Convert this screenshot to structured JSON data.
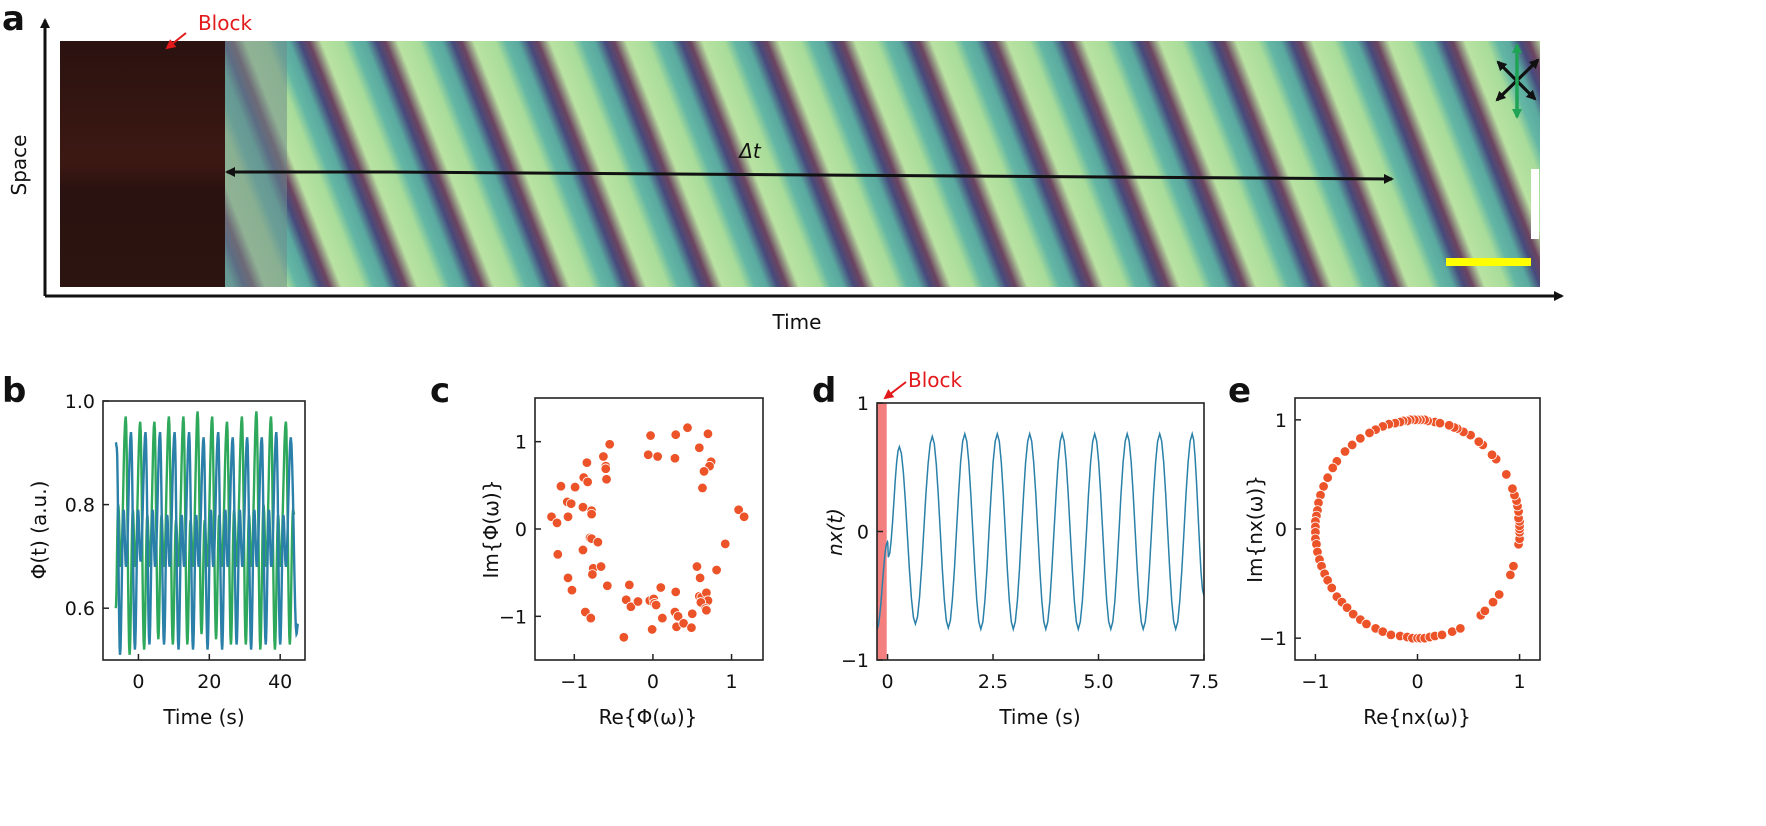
{
  "colors": {
    "annotation_red": "#e31a1c",
    "block_shade": "#f47f7f",
    "series_green": "#2ea85a",
    "series_blue": "#2a80a8",
    "scatter_orange": "#ec5329",
    "scale_bar_white": "#ffffff",
    "scale_bar_yellow": "#ffff00",
    "polarizer_green": "#1fa354",
    "polarizer_black": "#111111"
  },
  "panel_a": {
    "letter": "a",
    "block_label": "Block",
    "y_axis_label": "Space",
    "x_axis_label": "Time",
    "delta_label": "Δt",
    "icons": [
      "crossed-polarizer-arrows-icon"
    ]
  },
  "chart_data": [
    {
      "panel": "b",
      "type": "line",
      "xlabel": "Time (s)",
      "ylabel": "Φ(t) (a.u.)",
      "xlim": [
        -10,
        47
      ],
      "ylim": [
        0.5,
        1.0
      ],
      "xticks": [
        0,
        20,
        40
      ],
      "yticks": [
        0.6,
        0.8,
        1.0
      ],
      "ytick_labels": [
        "0.6",
        "0.8",
        "1.0"
      ],
      "grid": false,
      "series": [
        {
          "color": "#2ea85a",
          "points": [
            [
              -6.4,
              0.6
            ],
            [
              -5.7,
              0.8
            ],
            [
              -5.0,
              0.68
            ],
            [
              -3.6,
              0.97
            ],
            [
              -2.5,
              0.51
            ],
            [
              -1.6,
              0.79
            ],
            [
              -0.9,
              0.68
            ],
            [
              0.5,
              0.96
            ],
            [
              1.6,
              0.52
            ],
            [
              2.5,
              0.78
            ],
            [
              3.2,
              0.68
            ],
            [
              4.5,
              0.96
            ],
            [
              5.6,
              0.54
            ],
            [
              6.5,
              0.78
            ],
            [
              7.2,
              0.68
            ],
            [
              8.6,
              0.97
            ],
            [
              9.7,
              0.53
            ],
            [
              10.6,
              0.77
            ],
            [
              11.3,
              0.68
            ],
            [
              12.7,
              0.97
            ],
            [
              13.8,
              0.53
            ],
            [
              14.7,
              0.77
            ],
            [
              15.4,
              0.68
            ],
            [
              16.7,
              0.98
            ],
            [
              17.8,
              0.55
            ],
            [
              18.7,
              0.77
            ],
            [
              19.4,
              0.68
            ],
            [
              20.8,
              0.97
            ],
            [
              21.9,
              0.54
            ],
            [
              22.8,
              0.78
            ],
            [
              23.5,
              0.68
            ],
            [
              25.0,
              0.96
            ],
            [
              26.1,
              0.53
            ],
            [
              27.0,
              0.79
            ],
            [
              27.7,
              0.68
            ],
            [
              29.2,
              0.97
            ],
            [
              30.3,
              0.53
            ],
            [
              31.2,
              0.78
            ],
            [
              31.9,
              0.68
            ],
            [
              33.3,
              0.98
            ],
            [
              34.4,
              0.52
            ],
            [
              35.3,
              0.8
            ],
            [
              36.0,
              0.68
            ],
            [
              37.4,
              0.97
            ],
            [
              38.5,
              0.52
            ],
            [
              39.4,
              0.78
            ],
            [
              40.1,
              0.68
            ],
            [
              41.6,
              0.96
            ],
            [
              42.7,
              0.53
            ],
            [
              43.6,
              0.79
            ],
            [
              44.0,
              0.78
            ]
          ]
        },
        {
          "color": "#2a80a8",
          "points": [
            [
              -6.4,
              0.92
            ],
            [
              -6.1,
              0.91
            ],
            [
              -5.2,
              0.51
            ],
            [
              -4.2,
              0.79
            ],
            [
              -3.5,
              0.68
            ],
            [
              -2.1,
              0.94
            ],
            [
              -1.0,
              0.52
            ],
            [
              -0.1,
              0.79
            ],
            [
              0.6,
              0.69
            ],
            [
              2.0,
              0.94
            ],
            [
              3.1,
              0.53
            ],
            [
              4.0,
              0.79
            ],
            [
              4.7,
              0.68
            ],
            [
              6.1,
              0.94
            ],
            [
              7.2,
              0.53
            ],
            [
              8.1,
              0.78
            ],
            [
              8.8,
              0.68
            ],
            [
              10.2,
              0.94
            ],
            [
              11.3,
              0.52
            ],
            [
              12.2,
              0.78
            ],
            [
              12.9,
              0.68
            ],
            [
              14.3,
              0.94
            ],
            [
              15.4,
              0.52
            ],
            [
              16.3,
              0.78
            ],
            [
              17.0,
              0.68
            ],
            [
              18.4,
              0.93
            ],
            [
              19.5,
              0.52
            ],
            [
              20.4,
              0.79
            ],
            [
              21.1,
              0.68
            ],
            [
              22.5,
              0.94
            ],
            [
              23.6,
              0.52
            ],
            [
              24.5,
              0.79
            ],
            [
              25.2,
              0.68
            ],
            [
              26.6,
              0.93
            ],
            [
              27.7,
              0.53
            ],
            [
              28.6,
              0.79
            ],
            [
              29.3,
              0.68
            ],
            [
              30.7,
              0.93
            ],
            [
              31.8,
              0.52
            ],
            [
              32.7,
              0.79
            ],
            [
              33.4,
              0.68
            ],
            [
              34.8,
              0.93
            ],
            [
              35.9,
              0.53
            ],
            [
              36.8,
              0.79
            ],
            [
              37.5,
              0.68
            ],
            [
              38.9,
              0.94
            ],
            [
              40.0,
              0.53
            ],
            [
              40.9,
              0.78
            ],
            [
              41.6,
              0.68
            ],
            [
              43.0,
              0.93
            ],
            [
              44.6,
              0.55
            ],
            [
              45.0,
              0.57
            ]
          ]
        }
      ]
    },
    {
      "panel": "c",
      "type": "scatter",
      "xlabel": "Re{Φ(ω)}",
      "ylabel": "Im{Φ(ω)}",
      "xlim": [
        -1.5,
        1.4
      ],
      "ylim": [
        -1.5,
        1.5
      ],
      "xticks": [
        -1,
        0,
        1
      ],
      "yticks": [
        -1,
        0,
        1
      ],
      "grid": false,
      "color": "#ec5329",
      "points": [
        [
          -1.29,
          0.14
        ],
        [
          -1.22,
          0.07
        ],
        [
          -1.17,
          0.49
        ],
        [
          -0.99,
          0.48
        ],
        [
          -1.09,
          0.31
        ],
        [
          -1.04,
          0.29
        ],
        [
          -1.08,
          0.14
        ],
        [
          -1.21,
          -0.29
        ],
        [
          -1.08,
          -0.56
        ],
        [
          -1.03,
          -0.7
        ],
        [
          -0.86,
          -0.95
        ],
        [
          -0.79,
          -1.02
        ],
        [
          -0.84,
          0.76
        ],
        [
          -0.88,
          0.59
        ],
        [
          -0.83,
          0.54
        ],
        [
          -0.89,
          0.25
        ],
        [
          -0.78,
          0.21
        ],
        [
          -0.78,
          0.17
        ],
        [
          -0.8,
          -0.1
        ],
        [
          -0.78,
          -0.11
        ],
        [
          -0.7,
          -0.15
        ],
        [
          -0.89,
          -0.24
        ],
        [
          -0.76,
          -0.45
        ],
        [
          -0.66,
          -0.43
        ],
        [
          -0.77,
          -0.52
        ],
        [
          -0.58,
          -0.65
        ],
        [
          -0.63,
          0.83
        ],
        [
          -0.55,
          0.97
        ],
        [
          -0.6,
          0.72
        ],
        [
          -0.6,
          0.69
        ],
        [
          -0.59,
          0.57
        ],
        [
          -0.3,
          -0.64
        ],
        [
          -0.34,
          -0.81
        ],
        [
          -0.28,
          -0.89
        ],
        [
          -0.19,
          -0.83
        ],
        [
          -0.37,
          -1.24
        ],
        [
          -0.03,
          1.07
        ],
        [
          -0.06,
          0.85
        ],
        [
          0.06,
          0.83
        ],
        [
          0.29,
          1.08
        ],
        [
          0.28,
          0.81
        ],
        [
          0.44,
          1.16
        ],
        [
          0.7,
          1.09
        ],
        [
          0.59,
          0.93
        ],
        [
          0.74,
          0.77
        ],
        [
          0.72,
          0.72
        ],
        [
          0.65,
          0.66
        ],
        [
          0.63,
          0.47
        ],
        [
          1.09,
          0.22
        ],
        [
          1.16,
          0.14
        ],
        [
          0.92,
          -0.17
        ],
        [
          0.81,
          -0.47
        ],
        [
          0.56,
          -0.43
        ],
        [
          0.6,
          -0.56
        ],
        [
          0.59,
          -0.77
        ],
        [
          0.62,
          -0.78
        ],
        [
          0.68,
          -0.73
        ],
        [
          0.7,
          -0.82
        ],
        [
          0.61,
          -0.84
        ],
        [
          0.67,
          -0.91
        ],
        [
          0.68,
          -0.93
        ],
        [
          -0.04,
          -0.82
        ],
        [
          0.01,
          -0.8
        ],
        [
          0.02,
          -0.85
        ],
        [
          0.04,
          -0.87
        ],
        [
          0.1,
          -0.67
        ],
        [
          -0.01,
          -1.15
        ],
        [
          0.12,
          -1.02
        ],
        [
          0.29,
          -0.72
        ],
        [
          0.28,
          -0.95
        ],
        [
          0.32,
          -1.0
        ],
        [
          0.3,
          -1.12
        ],
        [
          0.39,
          -1.08
        ],
        [
          0.5,
          -0.97
        ],
        [
          0.49,
          -1.13
        ]
      ]
    },
    {
      "panel": "d",
      "type": "line",
      "xlabel": "Time (s)",
      "ylabel": "nx(t)",
      "xlim": [
        -0.25,
        7.5
      ],
      "ylim": [
        -1,
        1
      ],
      "xticks": [
        0,
        2.5,
        5.0,
        7.5
      ],
      "xtick_labels": [
        "0",
        "2.5",
        "5.0",
        "7.5"
      ],
      "yticks": [
        -1,
        0,
        1
      ],
      "grid": false,
      "block_label": "Block",
      "block_interval": [
        -0.25,
        -0.02
      ],
      "series": [
        {
          "color": "#2a80a8",
          "points": [
            [
              -0.25,
              -0.76
            ],
            [
              0.0,
              -0.08
            ],
            [
              0.02,
              -0.2
            ],
            [
              0.28,
              0.66
            ],
            [
              0.66,
              -0.72
            ],
            [
              1.06,
              0.74
            ],
            [
              1.44,
              -0.75
            ],
            [
              1.83,
              0.76
            ],
            [
              2.21,
              -0.76
            ],
            [
              2.6,
              0.76
            ],
            [
              2.98,
              -0.76
            ],
            [
              3.37,
              0.76
            ],
            [
              3.75,
              -0.76
            ],
            [
              4.14,
              0.76
            ],
            [
              4.52,
              -0.76
            ],
            [
              4.91,
              0.76
            ],
            [
              5.29,
              -0.76
            ],
            [
              5.68,
              0.76
            ],
            [
              6.06,
              -0.76
            ],
            [
              6.45,
              0.76
            ],
            [
              6.83,
              -0.76
            ],
            [
              7.22,
              0.76
            ],
            [
              7.5,
              -0.5
            ]
          ]
        }
      ]
    },
    {
      "panel": "e",
      "type": "scatter",
      "xlabel": "Re{nx(ω)}",
      "ylabel": "Im{nx(ω)}",
      "xlim": [
        -1.2,
        1.2
      ],
      "ylim": [
        -1.2,
        1.2
      ],
      "xticks": [
        -1,
        0,
        1
      ],
      "yticks": [
        -1,
        0,
        1
      ],
      "grid": false,
      "color": "#ec5329",
      "points": [
        [
          0.17,
          0.98
        ],
        [
          0.1,
          0.99
        ],
        [
          0.07,
          1.0
        ],
        [
          0.03,
          1.0
        ],
        [
          0.0,
          1.0
        ],
        [
          -0.03,
          1.0
        ],
        [
          -0.07,
          1.0
        ],
        [
          -0.1,
          0.99
        ],
        [
          -0.14,
          0.99
        ],
        [
          -0.17,
          0.98
        ],
        [
          -0.22,
          0.97
        ],
        [
          -0.28,
          0.96
        ],
        [
          -0.34,
          0.94
        ],
        [
          -0.41,
          0.91
        ],
        [
          -0.47,
          0.88
        ],
        [
          -0.56,
          0.83
        ],
        [
          -0.64,
          0.77
        ],
        [
          -0.71,
          0.71
        ],
        [
          -0.79,
          0.62
        ],
        [
          -0.83,
          0.56
        ],
        [
          -0.88,
          0.47
        ],
        [
          -0.92,
          0.39
        ],
        [
          -0.95,
          0.31
        ],
        [
          -0.97,
          0.24
        ],
        [
          -0.98,
          0.17
        ],
        [
          -0.99,
          0.12
        ],
        [
          -1.0,
          0.07
        ],
        [
          -1.0,
          0.02
        ],
        [
          -1.0,
          -0.03
        ],
        [
          -1.0,
          -0.09
        ],
        [
          -0.99,
          -0.14
        ],
        [
          -0.98,
          -0.21
        ],
        [
          -0.96,
          -0.28
        ],
        [
          -0.94,
          -0.34
        ],
        [
          -0.91,
          -0.41
        ],
        [
          -0.88,
          -0.47
        ],
        [
          -0.84,
          -0.54
        ],
        [
          -0.79,
          -0.62
        ],
        [
          -0.74,
          -0.67
        ],
        [
          -0.69,
          -0.72
        ],
        [
          -0.63,
          -0.78
        ],
        [
          -0.56,
          -0.83
        ],
        [
          -0.5,
          -0.87
        ],
        [
          -0.41,
          -0.91
        ],
        [
          -0.34,
          -0.94
        ],
        [
          -0.26,
          -0.97
        ],
        [
          -0.17,
          -0.98
        ],
        [
          -0.1,
          -0.99
        ],
        [
          -0.05,
          -1.0
        ],
        [
          0.0,
          -1.0
        ],
        [
          0.03,
          -1.0
        ],
        [
          0.07,
          -1.0
        ],
        [
          0.12,
          -0.99
        ],
        [
          0.17,
          -0.98
        ],
        [
          0.24,
          -0.97
        ],
        [
          0.34,
          -0.94
        ],
        [
          0.42,
          -0.91
        ],
        [
          0.62,
          -0.79
        ],
        [
          0.66,
          -0.75
        ],
        [
          0.74,
          -0.67
        ],
        [
          0.8,
          -0.6
        ],
        [
          0.91,
          -0.42
        ],
        [
          0.94,
          -0.34
        ],
        [
          0.99,
          -0.14
        ],
        [
          1.0,
          -0.09
        ],
        [
          1.0,
          -0.03
        ],
        [
          1.0,
          0.0
        ],
        [
          1.0,
          0.03
        ],
        [
          1.0,
          0.07
        ],
        [
          0.99,
          0.1
        ],
        [
          0.99,
          0.16
        ],
        [
          0.98,
          0.21
        ],
        [
          0.97,
          0.26
        ],
        [
          0.95,
          0.31
        ],
        [
          0.93,
          0.37
        ],
        [
          0.87,
          0.5
        ],
        [
          0.77,
          0.64
        ],
        [
          0.73,
          0.68
        ],
        [
          0.64,
          0.77
        ],
        [
          0.6,
          0.8
        ],
        [
          0.52,
          0.86
        ],
        [
          0.45,
          0.89
        ],
        [
          0.39,
          0.92
        ],
        [
          0.36,
          0.93
        ],
        [
          0.31,
          0.95
        ],
        [
          0.22,
          0.97
        ]
      ]
    }
  ]
}
